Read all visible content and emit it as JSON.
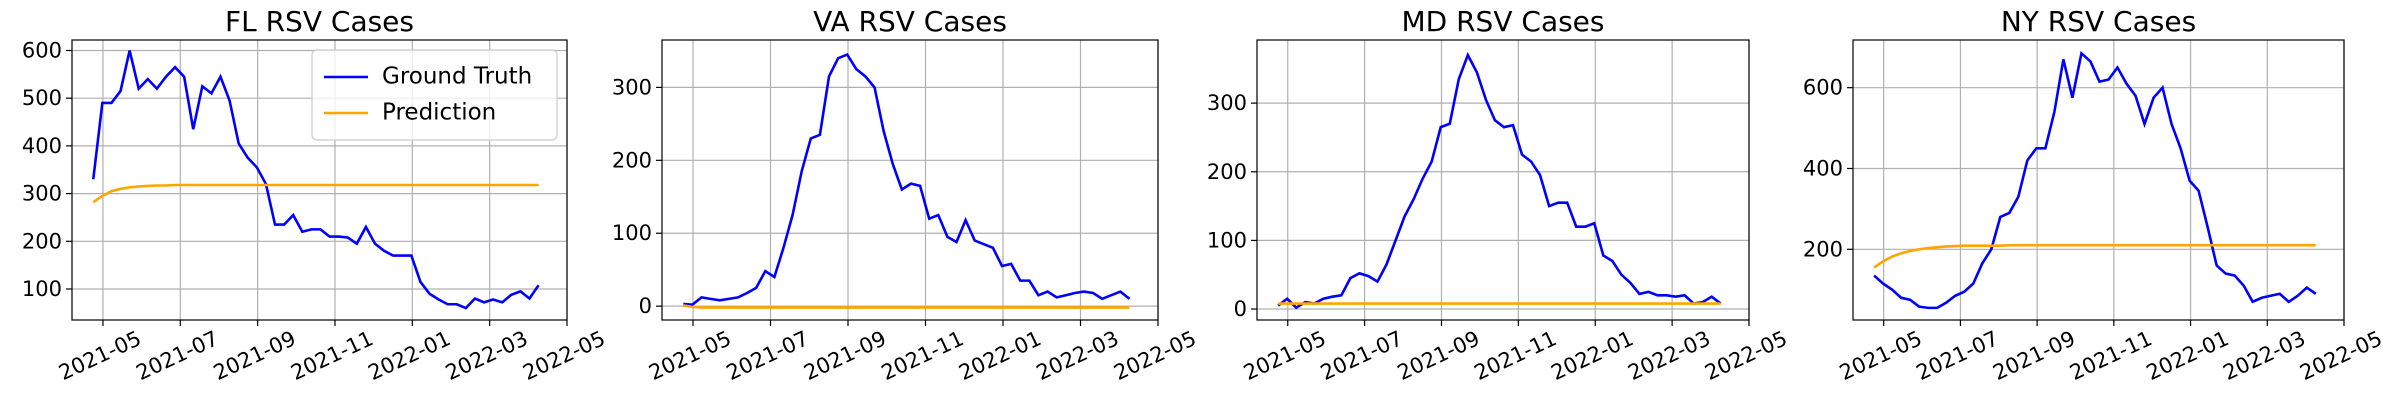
{
  "chart_data": [
    {
      "type": "line",
      "title": "FL RSV Cases",
      "x": [
        3.75,
        3.985,
        4.22,
        4.455,
        4.69,
        4.925,
        5.16,
        5.395,
        5.63,
        5.865,
        6.1,
        6.335,
        6.57,
        6.805,
        7.04,
        7.275,
        7.51,
        7.745,
        7.98,
        8.215,
        8.45,
        8.685,
        8.92,
        9.155,
        9.39,
        9.625,
        9.86,
        10.095,
        10.33,
        10.565,
        10.8,
        11.035,
        11.27,
        11.505,
        11.74,
        11.975,
        12.21,
        12.445,
        12.68,
        12.915,
        13.15,
        13.385,
        13.62,
        13.855,
        14.09,
        14.325,
        14.56,
        14.795,
        15.03,
        15.265
      ],
      "series": [
        {
          "name": "Ground Truth",
          "color": "#0000ff",
          "values": [
            330,
            490,
            490,
            515,
            600,
            520,
            540,
            520,
            545,
            565,
            545,
            435,
            525,
            510,
            545,
            495,
            405,
            375,
            355,
            320,
            235,
            235,
            255,
            220,
            225,
            225,
            210,
            210,
            208,
            195,
            230,
            195,
            180,
            170,
            170,
            170,
            115,
            90,
            78,
            68,
            68,
            60,
            80,
            72,
            78,
            72,
            88,
            95,
            80,
            108
          ]
        },
        {
          "name": "Prediction",
          "color": "#ffa500",
          "values": [
            282,
            295,
            305,
            310,
            313,
            315,
            316,
            317,
            317,
            318,
            318,
            318,
            318,
            318,
            318,
            318,
            318,
            318,
            318,
            318,
            318,
            318,
            318,
            318,
            318,
            318,
            318,
            318,
            318,
            318,
            318,
            318,
            318,
            318,
            318,
            318,
            318,
            318,
            318,
            318,
            318,
            318,
            318,
            318,
            318,
            318,
            318,
            318,
            318,
            318
          ]
        }
      ],
      "xlim": [
        3.2,
        16
      ],
      "xticks": [
        {
          "value": 4,
          "label": "2021-05"
        },
        {
          "value": 6,
          "label": "2021-07"
        },
        {
          "value": 8,
          "label": "2021-09"
        },
        {
          "value": 10,
          "label": "2021-11"
        },
        {
          "value": 12,
          "label": "2022-01"
        },
        {
          "value": 14,
          "label": "2022-03"
        },
        {
          "value": 16,
          "label": "2022-05"
        }
      ],
      "ylim": [
        35,
        622
      ],
      "yticks": [
        100,
        200,
        300,
        400,
        500,
        600
      ],
      "grid": true,
      "legend": "upper right"
    },
    {
      "type": "line",
      "title": "VA RSV Cases",
      "x": [
        3.75,
        3.985,
        4.22,
        4.455,
        4.69,
        4.925,
        5.16,
        5.395,
        5.63,
        5.865,
        6.1,
        6.335,
        6.57,
        6.805,
        7.04,
        7.275,
        7.51,
        7.745,
        7.98,
        8.215,
        8.45,
        8.685,
        8.92,
        9.155,
        9.39,
        9.625,
        9.86,
        10.095,
        10.33,
        10.565,
        10.8,
        11.035,
        11.27,
        11.505,
        11.74,
        11.975,
        12.21,
        12.445,
        12.68,
        12.915,
        13.15,
        13.385,
        13.62,
        13.855,
        14.09,
        14.325,
        14.56,
        14.795,
        15.03,
        15.265
      ],
      "series": [
        {
          "color": "#0000ff",
          "values": [
            3,
            2,
            12,
            10,
            8,
            10,
            12,
            18,
            25,
            48,
            40,
            80,
            125,
            185,
            230,
            235,
            315,
            340,
            345,
            325,
            315,
            300,
            240,
            195,
            160,
            168,
            165,
            120,
            125,
            95,
            88,
            118,
            90,
            85,
            80,
            55,
            58,
            35,
            35,
            15,
            20,
            12,
            15,
            18,
            20,
            18,
            10,
            15,
            20,
            10
          ]
        },
        {
          "color": "#ffa500",
          "values": [
            1,
            -1,
            -2,
            -2,
            -2,
            -2,
            -2,
            -2,
            -2,
            -2,
            -2,
            -2,
            -2,
            -2,
            -2,
            -2,
            -2,
            -2,
            -2,
            -2,
            -2,
            -2,
            -2,
            -2,
            -2,
            -2,
            -2,
            -2,
            -2,
            -2,
            -2,
            -2,
            -2,
            -2,
            -2,
            -2,
            -2,
            -2,
            -2,
            -2,
            -2,
            -2,
            -2,
            -2,
            -2,
            -2,
            -2,
            -2,
            -2,
            -2
          ]
        }
      ],
      "xlim": [
        3.2,
        16
      ],
      "xticks": [
        {
          "value": 4,
          "label": "2021-05"
        },
        {
          "value": 6,
          "label": "2021-07"
        },
        {
          "value": 8,
          "label": "2021-09"
        },
        {
          "value": 10,
          "label": "2021-11"
        },
        {
          "value": 12,
          "label": "2022-01"
        },
        {
          "value": 14,
          "label": "2022-03"
        },
        {
          "value": 16,
          "label": "2022-05"
        }
      ],
      "ylim": [
        -19,
        365
      ],
      "yticks": [
        0,
        100,
        200,
        300
      ],
      "grid": true
    },
    {
      "type": "line",
      "title": "MD RSV Cases",
      "x": [
        3.75,
        3.985,
        4.22,
        4.455,
        4.69,
        4.925,
        5.16,
        5.395,
        5.63,
        5.865,
        6.1,
        6.335,
        6.57,
        6.805,
        7.04,
        7.275,
        7.51,
        7.745,
        7.98,
        8.215,
        8.45,
        8.685,
        8.92,
        9.155,
        9.39,
        9.625,
        9.86,
        10.095,
        10.33,
        10.565,
        10.8,
        11.035,
        11.27,
        11.505,
        11.74,
        11.975,
        12.21,
        12.445,
        12.68,
        12.915,
        13.15,
        13.385,
        13.62,
        13.855,
        14.09,
        14.325,
        14.56,
        14.795,
        15.03,
        15.265
      ],
      "series": [
        {
          "color": "#0000ff",
          "values": [
            5,
            15,
            2,
            10,
            8,
            15,
            18,
            20,
            45,
            52,
            48,
            40,
            65,
            100,
            135,
            160,
            190,
            215,
            265,
            270,
            335,
            370,
            345,
            305,
            275,
            265,
            268,
            225,
            215,
            195,
            150,
            155,
            155,
            120,
            120,
            125,
            78,
            70,
            50,
            38,
            22,
            25,
            20,
            20,
            18,
            20,
            8,
            10,
            18,
            8
          ]
        },
        {
          "color": "#ffa500",
          "values": [
            8,
            8,
            8,
            8,
            8,
            8,
            8,
            8,
            8,
            8,
            8,
            8,
            8,
            8,
            8,
            8,
            8,
            8,
            8,
            8,
            8,
            8,
            8,
            8,
            8,
            8,
            8,
            8,
            8,
            8,
            8,
            8,
            8,
            8,
            8,
            8,
            8,
            8,
            8,
            8,
            8,
            8,
            8,
            8,
            8,
            8,
            8,
            8,
            8,
            8
          ]
        }
      ],
      "xlim": [
        3.2,
        16
      ],
      "xticks": [
        {
          "value": 4,
          "label": "2021-05"
        },
        {
          "value": 6,
          "label": "2021-07"
        },
        {
          "value": 8,
          "label": "2021-09"
        },
        {
          "value": 10,
          "label": "2021-11"
        },
        {
          "value": 12,
          "label": "2022-01"
        },
        {
          "value": 14,
          "label": "2022-03"
        },
        {
          "value": 16,
          "label": "2022-05"
        }
      ],
      "ylim": [
        -16,
        392
      ],
      "yticks": [
        0,
        100,
        200,
        300
      ],
      "grid": true
    },
    {
      "type": "line",
      "title": "NY RSV Cases",
      "x": [
        3.75,
        3.985,
        4.22,
        4.455,
        4.69,
        4.925,
        5.16,
        5.395,
        5.63,
        5.865,
        6.1,
        6.335,
        6.57,
        6.805,
        7.04,
        7.275,
        7.51,
        7.745,
        7.98,
        8.215,
        8.45,
        8.685,
        8.92,
        9.155,
        9.39,
        9.625,
        9.86,
        10.095,
        10.33,
        10.565,
        10.8,
        11.035,
        11.27,
        11.505,
        11.74,
        11.975,
        12.21,
        12.445,
        12.68,
        12.915,
        13.15,
        13.385,
        13.62,
        13.855,
        14.09,
        14.325,
        14.56,
        14.795,
        15.03,
        15.265
      ],
      "series": [
        {
          "color": "#0000ff",
          "values": [
            135,
            115,
            100,
            80,
            75,
            58,
            55,
            55,
            68,
            85,
            95,
            115,
            165,
            200,
            280,
            290,
            330,
            420,
            450,
            450,
            540,
            670,
            575,
            685,
            665,
            615,
            620,
            650,
            610,
            580,
            510,
            575,
            600,
            510,
            450,
            370,
            345,
            255,
            160,
            140,
            135,
            110,
            70,
            80,
            85,
            90,
            70,
            85,
            105,
            90
          ]
        },
        {
          "color": "#ffa500",
          "values": [
            155,
            170,
            182,
            190,
            196,
            200,
            203,
            205,
            207,
            208,
            209,
            209,
            209,
            209,
            209,
            210,
            210,
            210,
            210,
            210,
            210,
            210,
            210,
            210,
            210,
            210,
            210,
            210,
            210,
            210,
            210,
            210,
            210,
            210,
            210,
            210,
            210,
            210,
            210,
            210,
            210,
            210,
            210,
            210,
            210,
            210,
            210,
            210,
            210,
            210
          ]
        }
      ],
      "xlim": [
        3.2,
        16
      ],
      "xticks": [
        {
          "value": 4,
          "label": "2021-05"
        },
        {
          "value": 6,
          "label": "2021-07"
        },
        {
          "value": 8,
          "label": "2021-09"
        },
        {
          "value": 10,
          "label": "2021-11"
        },
        {
          "value": 12,
          "label": "2022-01"
        },
        {
          "value": 14,
          "label": "2022-03"
        },
        {
          "value": 16,
          "label": "2022-05"
        }
      ],
      "ylim": [
        25,
        718
      ],
      "yticks": [
        200,
        400,
        600
      ],
      "grid": true
    }
  ]
}
